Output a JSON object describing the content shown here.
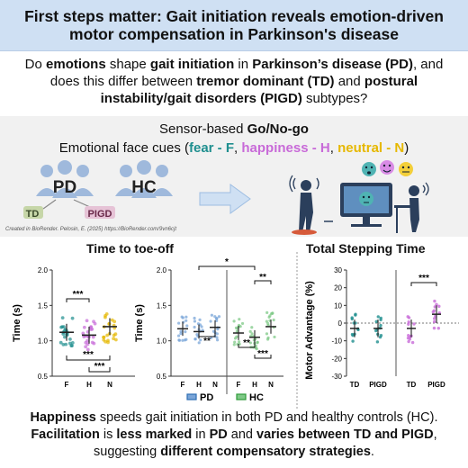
{
  "title": "First steps matter: Gait initiation reveals emotion-driven motor compensation in Parkinson's disease",
  "question": {
    "p1": "Do ",
    "b1": "emotions",
    "p2": " shape ",
    "b2": "gait initiation",
    "p3": " in ",
    "b3": "Parkinson’s disease (PD)",
    "p4": ", and does this differ between ",
    "b4": "tremor dominant (TD)",
    "p5": " and ",
    "b5": "postural instability/gait disorders (PIGD)",
    "p6": " subtypes?"
  },
  "method": {
    "line1_pre": "Sensor-based ",
    "line1_bold": "Go/No-go",
    "line2_pre": "Emotional face cues (",
    "fear": "fear - F",
    "sep1": ", ",
    "happiness": "happiness - H",
    "sep2": ", ",
    "neutral": "neutral - N",
    "line2_post": ")",
    "groups": {
      "pd": "PD",
      "hc": "HC",
      "td": "TD",
      "pigd": "PIGD"
    },
    "credit": "Created in BioRender. Pelosin, E. (2025) https://BioRender.com/9vn6cjt"
  },
  "colors": {
    "title_bg": "#cfe0f3",
    "fear": "#1f8f8f",
    "happiness": "#c86ad8",
    "neutral": "#e6b800",
    "pd": "#2f6fb5",
    "hc": "#2e9b3a",
    "td": "#5a7a4a",
    "pigd": "#b04a7a"
  },
  "charts": {
    "toe_off_title": "Time to toe-off",
    "stepping_title": "Total Stepping Time",
    "chart1": {
      "ylabel": "Time (s)",
      "yticks": [
        "2.0",
        "1.5",
        "1.0",
        "0.5"
      ],
      "xticks": [
        "F",
        "H",
        "N"
      ],
      "sig": [
        "***",
        "***",
        "***"
      ]
    },
    "chart2": {
      "ylabel": "Time (s)",
      "yticks": [
        "2.0",
        "1.5",
        "1.0",
        "0.5"
      ],
      "xticks": [
        "F",
        "H",
        "N",
        "F",
        "H",
        "N"
      ],
      "sig": [
        "*",
        "**",
        "**",
        "**",
        "***"
      ],
      "legend_pd": "PD",
      "legend_hc": "HC"
    },
    "chart3": {
      "ylabel": "Motor Advantage (%)",
      "yticks": [
        "30",
        "20",
        "10",
        "0",
        "-10",
        "-20",
        "-30"
      ],
      "xticks": [
        "TD",
        "PIGD",
        "TD",
        "PIGD"
      ],
      "sig": [
        "***"
      ]
    }
  },
  "chart_data": [
    {
      "type": "scatter",
      "title": "Time to toe-off",
      "ylabel": "Time (s)",
      "ylim": [
        0.5,
        2.0
      ],
      "categories": [
        "F",
        "H",
        "N"
      ],
      "series": [
        {
          "values": [
            1.12,
            1.08,
            1.2
          ]
        }
      ]
    },
    {
      "type": "scatter",
      "ylabel": "Time (s)",
      "ylim": [
        0.5,
        2.0
      ],
      "categories": [
        "F",
        "H",
        "N"
      ],
      "series": [
        {
          "name": "PD",
          "values": [
            1.17,
            1.13,
            1.19
          ]
        },
        {
          "name": "HC",
          "values": [
            1.11,
            1.05,
            1.2
          ]
        }
      ]
    },
    {
      "type": "scatter",
      "title": "Total Stepping Time",
      "ylabel": "Motor Advantage (%)",
      "ylim": [
        -30,
        30
      ],
      "categories": [
        "TD",
        "PIGD"
      ],
      "series": [
        {
          "name": "PD",
          "values": [
            -3,
            -3
          ]
        },
        {
          "name": "HC",
          "values": [
            -3,
            5
          ]
        }
      ]
    }
  ],
  "conclusion": {
    "b1": "Happiness",
    "p1": " speeds gait initiation in both PD and healthy controls (HC). ",
    "b2": "Facilitation",
    "p2": " is ",
    "b3": "less marked",
    "p3": " in ",
    "b4": "PD",
    "p4": " and ",
    "b5": "varies between TD and PIGD",
    "p5": ", suggesting ",
    "b6": "different compensatory strategies",
    "p6": "."
  }
}
